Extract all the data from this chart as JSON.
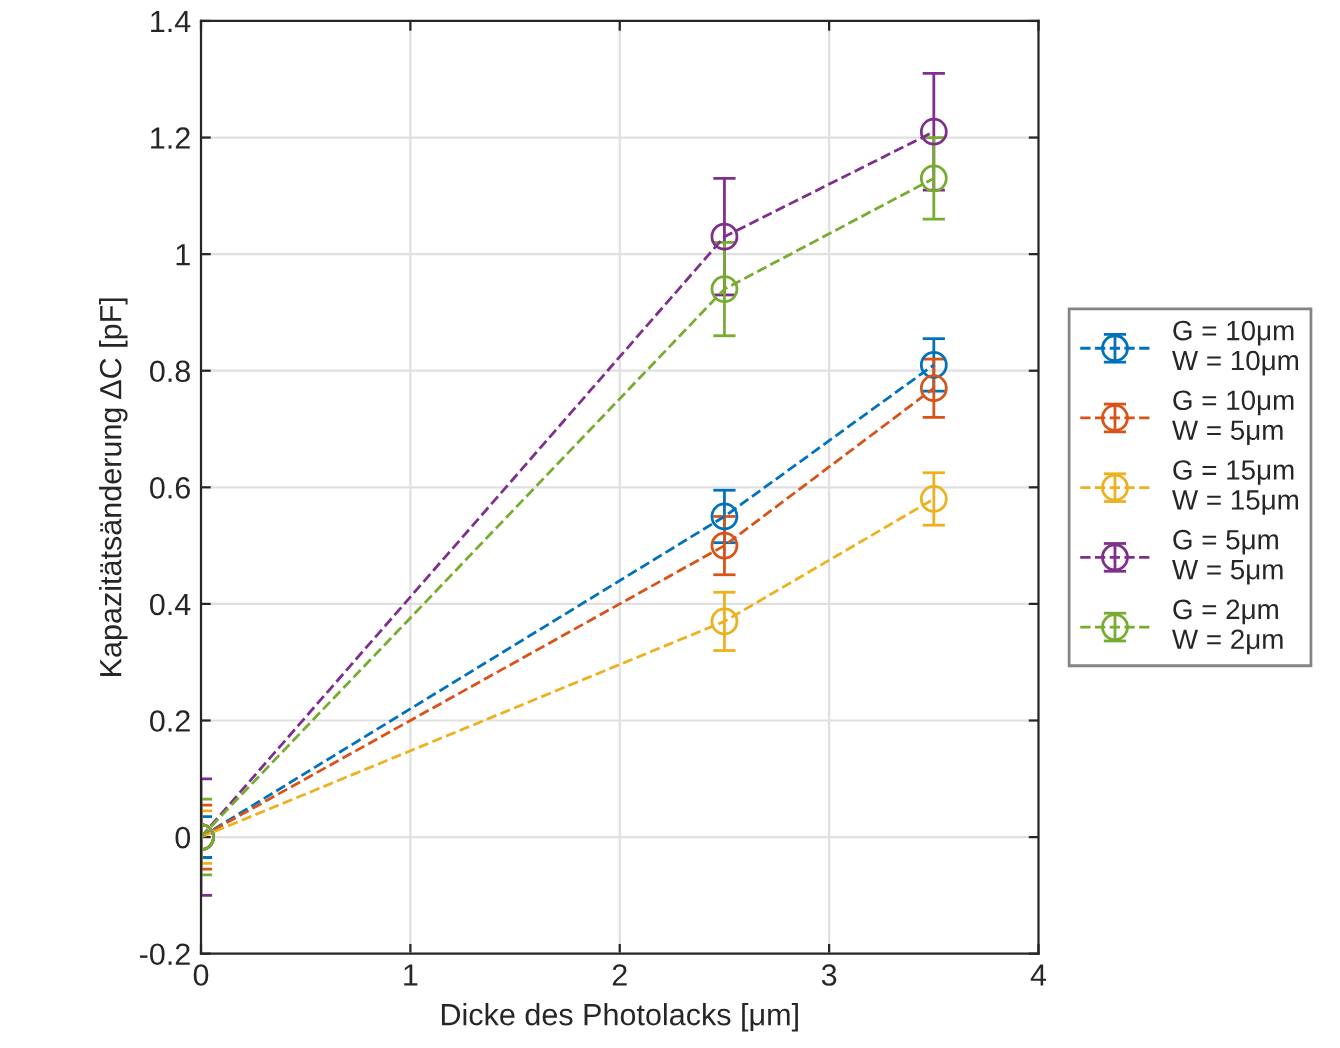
{
  "chart_data": {
    "type": "line",
    "xlabel": "Dicke des Photolacks [μm]",
    "ylabel": "Kapazitätsänderung ΔC [pF]",
    "x": [
      0,
      2.5,
      3.5
    ],
    "series": [
      {
        "name": "G = 10μm\nW = 10μm",
        "color": "#0072bd",
        "values": [
          0,
          0.55,
          0.81
        ],
        "errors": [
          0.035,
          0.045,
          0.045
        ]
      },
      {
        "name": "G = 10μm\nW = 5μm",
        "color": "#d95319",
        "values": [
          0,
          0.5,
          0.77
        ],
        "errors": [
          0.055,
          0.05,
          0.05
        ]
      },
      {
        "name": "G = 15μm\nW = 15μm",
        "color": "#edb120",
        "values": [
          0,
          0.37,
          0.58
        ],
        "errors": [
          0.045,
          0.05,
          0.045
        ]
      },
      {
        "name": "G = 5μm\nW = 5μm",
        "color": "#7e2f8e",
        "values": [
          0,
          1.03,
          1.21
        ],
        "errors": [
          0.1,
          0.1,
          0.1
        ]
      },
      {
        "name": "G = 2μm\nW = 2μm",
        "color": "#77ac30",
        "values": [
          0,
          0.94,
          1.13
        ],
        "errors": [
          0.065,
          0.08,
          0.07
        ]
      }
    ],
    "xlim": [
      0,
      4
    ],
    "xticks": [
      0,
      1,
      2,
      3,
      4
    ],
    "ylim": [
      -0.2,
      1.4
    ],
    "yticks": [
      -0.2,
      0,
      0.2,
      0.4,
      0.6,
      0.8,
      1,
      1.2,
      1.4
    ],
    "grid": true,
    "legend": "right",
    "marker": "circle",
    "line_style": "dashed"
  }
}
